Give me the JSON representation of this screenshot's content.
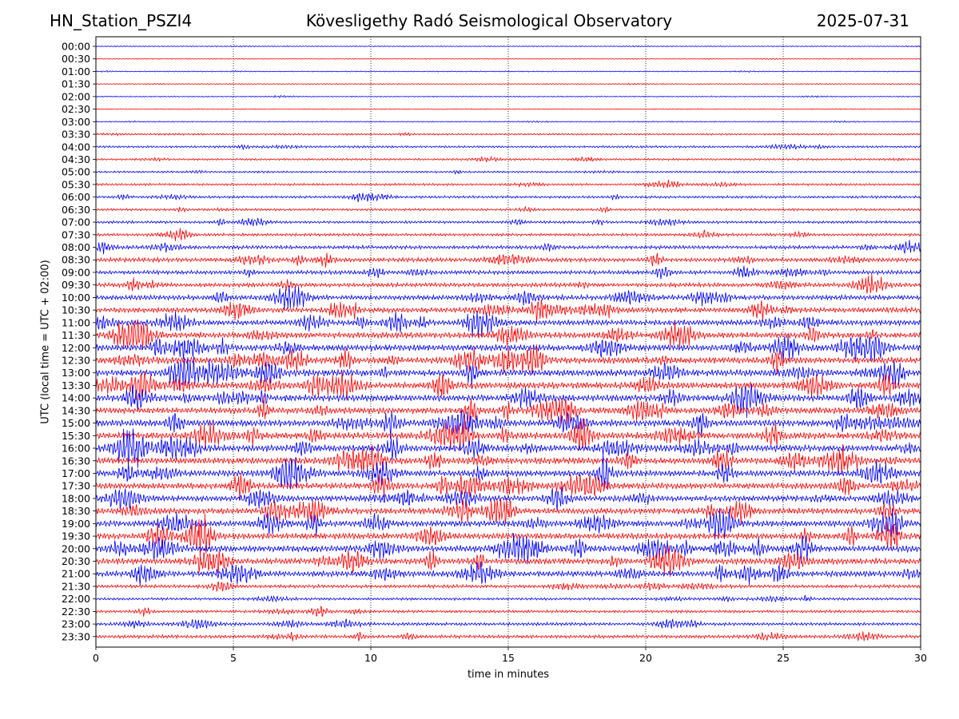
{
  "header": {
    "station": "HN_Station_PSZI4",
    "observatory": "Kövesligethy Radó Seismological Observatory",
    "date": "2025-07-31"
  },
  "chart_data": {
    "type": "line",
    "title": "Kövesligethy Radó Seismological Observatory",
    "xlabel": "time in minutes",
    "ylabel": "UTC (local time = UTC + 02:00)",
    "xlim": [
      0,
      30
    ],
    "xticks": [
      0,
      5,
      10,
      15,
      20,
      25,
      30
    ],
    "vertical_gridlines": [
      5,
      10,
      15,
      20,
      25
    ],
    "colors": {
      "full_hour": "#0000ff",
      "half_hour": "#ff0000"
    },
    "rows": [
      "00:00",
      "00:30",
      "01:00",
      "01:30",
      "02:00",
      "02:30",
      "03:00",
      "03:30",
      "04:00",
      "04:30",
      "05:00",
      "05:30",
      "06:00",
      "06:30",
      "07:00",
      "07:30",
      "08:00",
      "08:30",
      "09:00",
      "09:30",
      "10:00",
      "10:30",
      "11:00",
      "11:30",
      "12:00",
      "12:30",
      "13:00",
      "13:30",
      "14:00",
      "14:30",
      "15:00",
      "15:30",
      "16:00",
      "16:30",
      "17:00",
      "17:30",
      "18:00",
      "18:30",
      "19:00",
      "19:30",
      "20:00",
      "20:30",
      "21:00",
      "21:30",
      "22:00",
      "22:30",
      "23:00",
      "23:30"
    ],
    "relative_noise_level": [
      0.05,
      0.04,
      0.06,
      0.05,
      0.08,
      0.04,
      0.08,
      0.12,
      0.18,
      0.16,
      0.15,
      0.2,
      0.25,
      0.22,
      0.28,
      0.32,
      0.45,
      0.55,
      0.5,
      0.55,
      0.7,
      0.75,
      0.8,
      0.85,
      0.95,
      0.95,
      1.0,
      1.0,
      1.0,
      0.95,
      1.0,
      1.0,
      1.0,
      0.95,
      0.95,
      0.9,
      0.85,
      0.9,
      0.9,
      0.9,
      0.95,
      0.9,
      0.85,
      0.4,
      0.25,
      0.3,
      0.35,
      0.4
    ]
  }
}
